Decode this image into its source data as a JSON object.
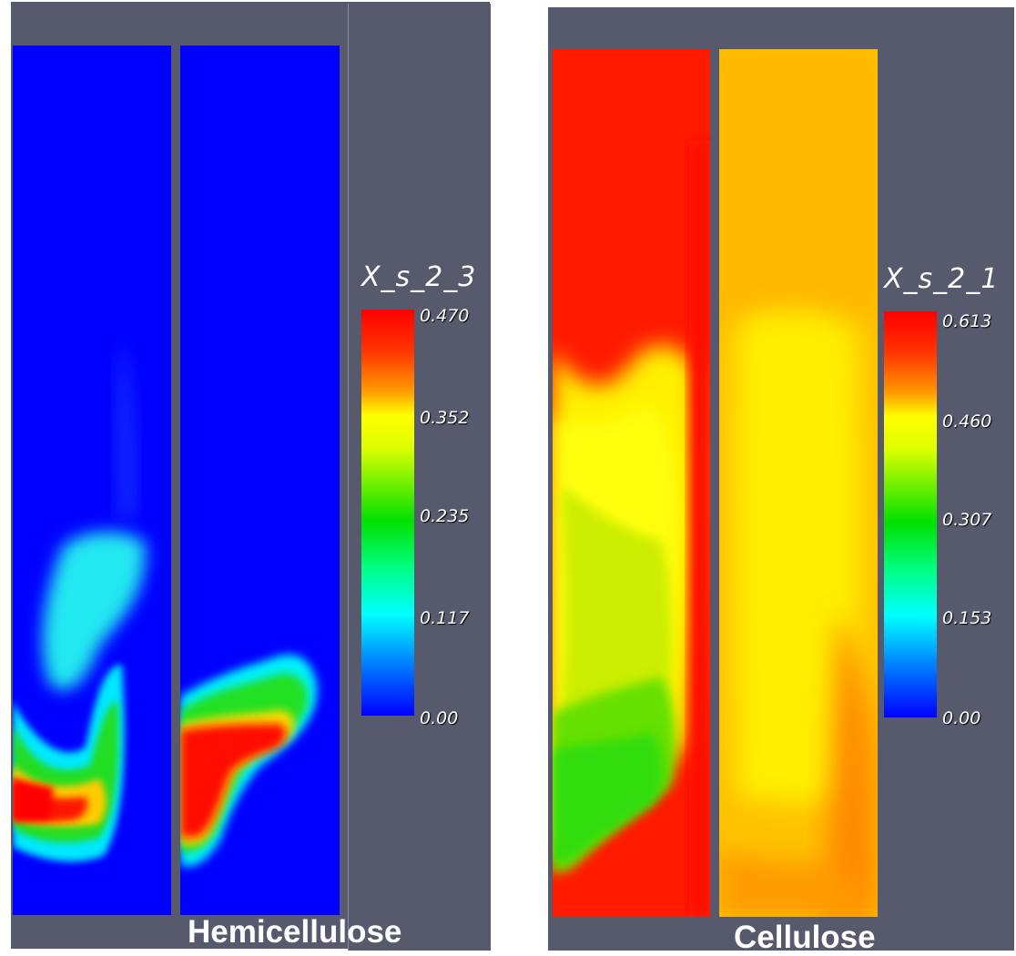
{
  "panels": [
    {
      "caption": "Hemicellulose",
      "variable": "X_s_2_3",
      "ticks": [
        "0.470",
        "0.352",
        "0.235",
        "0.117",
        "0.00"
      ],
      "range": [
        0.0,
        0.47
      ]
    },
    {
      "caption": "Cellulose",
      "variable": "X_s_2_1",
      "ticks": [
        "0.613",
        "0.460",
        "0.307",
        "0.153",
        "0.00"
      ],
      "range": [
        0.0,
        0.613
      ]
    }
  ],
  "colors": {
    "background": "#565a6c",
    "colormap": [
      "#0000ff",
      "#00ffff",
      "#00e000",
      "#ffff00",
      "#ff0000"
    ]
  }
}
